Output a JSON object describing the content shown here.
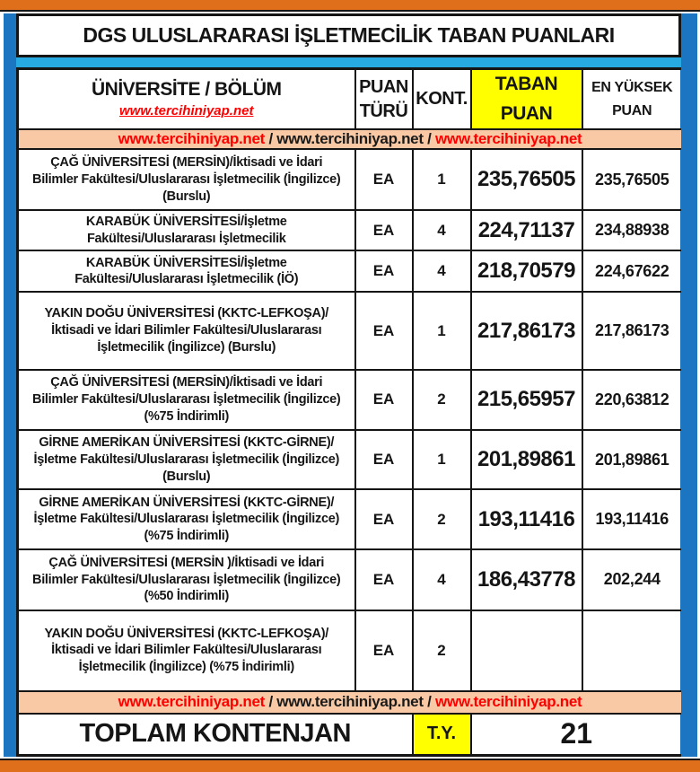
{
  "title": "DGS ULUSLARARASI İŞLETMECİLİK TABAN PUANLARI",
  "header": {
    "university": "ÜNİVERSİTE / BÖLÜM",
    "university_link": "www.tercihiniyap.net",
    "score_type": "PUAN\nTÜRÜ",
    "quota": "KONT.",
    "base_score": "TABAN\nPUAN",
    "highest_score": "EN YÜKSEK\nPUAN"
  },
  "link_row": {
    "parts": [
      {
        "text": "www.tercihiniyap.net",
        "color": "red"
      },
      {
        "text": " / ",
        "color": "black"
      },
      {
        "text": "www.tercihiniyap.net",
        "color": "black"
      },
      {
        "text": " / ",
        "color": "black"
      },
      {
        "text": "www.tercihiniyap.net",
        "color": "red"
      }
    ]
  },
  "rows": [
    {
      "university": "ÇAĞ ÜNİVERSİTESİ (MERSİN)/İktisadi ve İdari Bilimler Fakültesi/Uluslararası İşletmecilik (İngilizce) (Burslu)",
      "score_type": "EA",
      "quota": "1",
      "base_score": "235,76505",
      "highest_score": "235,76505"
    },
    {
      "university": "KARABÜK ÜNİVERSİTESİ/İşletme Fakültesi/Uluslararası İşletmecilik",
      "score_type": "EA",
      "quota": "4",
      "base_score": "224,71137",
      "highest_score": "234,88938"
    },
    {
      "university": "KARABÜK ÜNİVERSİTESİ/İşletme Fakültesi/Uluslararası İşletmecilik (İÖ)",
      "score_type": "EA",
      "quota": "4",
      "base_score": "218,70579",
      "highest_score": "224,67622"
    },
    {
      "university": "YAKIN DOĞU ÜNİVERSİTESİ (KKTC-LEFKOŞA)/İktisadi ve İdari Bilimler Fakültesi/Uluslararası İşletmecilik (İngilizce) (Burslu)",
      "score_type": "EA",
      "quota": "1",
      "base_score": "217,86173",
      "highest_score": "217,86173"
    },
    {
      "university": "ÇAĞ ÜNİVERSİTESİ (MERSİN)/İktisadi ve İdari Bilimler Fakültesi/Uluslararası İşletmecilik (İngilizce) (%75 İndirimli)",
      "score_type": "EA",
      "quota": "2",
      "base_score": "215,65957",
      "highest_score": "220,63812"
    },
    {
      "university": "GİRNE AMERİKAN ÜNİVERSİTESİ (KKTC-GİRNE)/İşletme Fakültesi/Uluslararası İşletmecilik (İngilizce) (Burslu)",
      "score_type": "EA",
      "quota": "1",
      "base_score": "201,89861",
      "highest_score": "201,89861"
    },
    {
      "university": "GİRNE AMERİKAN ÜNİVERSİTESİ (KKTC-GİRNE)/İşletme Fakültesi/Uluslararası İşletmecilik (İngilizce) (%75 İndirimli)",
      "score_type": "EA",
      "quota": "2",
      "base_score": "193,11416",
      "highest_score": "193,11416"
    },
    {
      "university": "ÇAĞ ÜNİVERSİTESİ (MERSİN )/İktisadi ve İdari Bilimler Fakültesi/Uluslararası İşletmecilik (İngilizce) (%50 İndirimli)",
      "score_type": "EA",
      "quota": "4",
      "base_score": "186,43778",
      "highest_score": "202,244"
    },
    {
      "university": "YAKIN DOĞU ÜNİVERSİTESİ (KKTC-LEFKOŞA)/İktisadi ve İdari Bilimler Fakültesi/Uluslararası İşletmecilik (İngilizce) (%75 İndirimli)",
      "score_type": "EA",
      "quota": "2",
      "base_score": "",
      "highest_score": ""
    }
  ],
  "footer": {
    "total_label": "TOPLAM KONTENJAN",
    "total_type": "T.Y.",
    "total_value": "21"
  },
  "colors": {
    "orange_bar": "#DF6F1B",
    "blue_border": "#1B75C0",
    "cyan_strip": "#27A9E1",
    "peach_row": "#F8C9A4",
    "yellow_highlight": "#FFFF00",
    "link_red": "#FE0000",
    "text_black": "#151515"
  }
}
